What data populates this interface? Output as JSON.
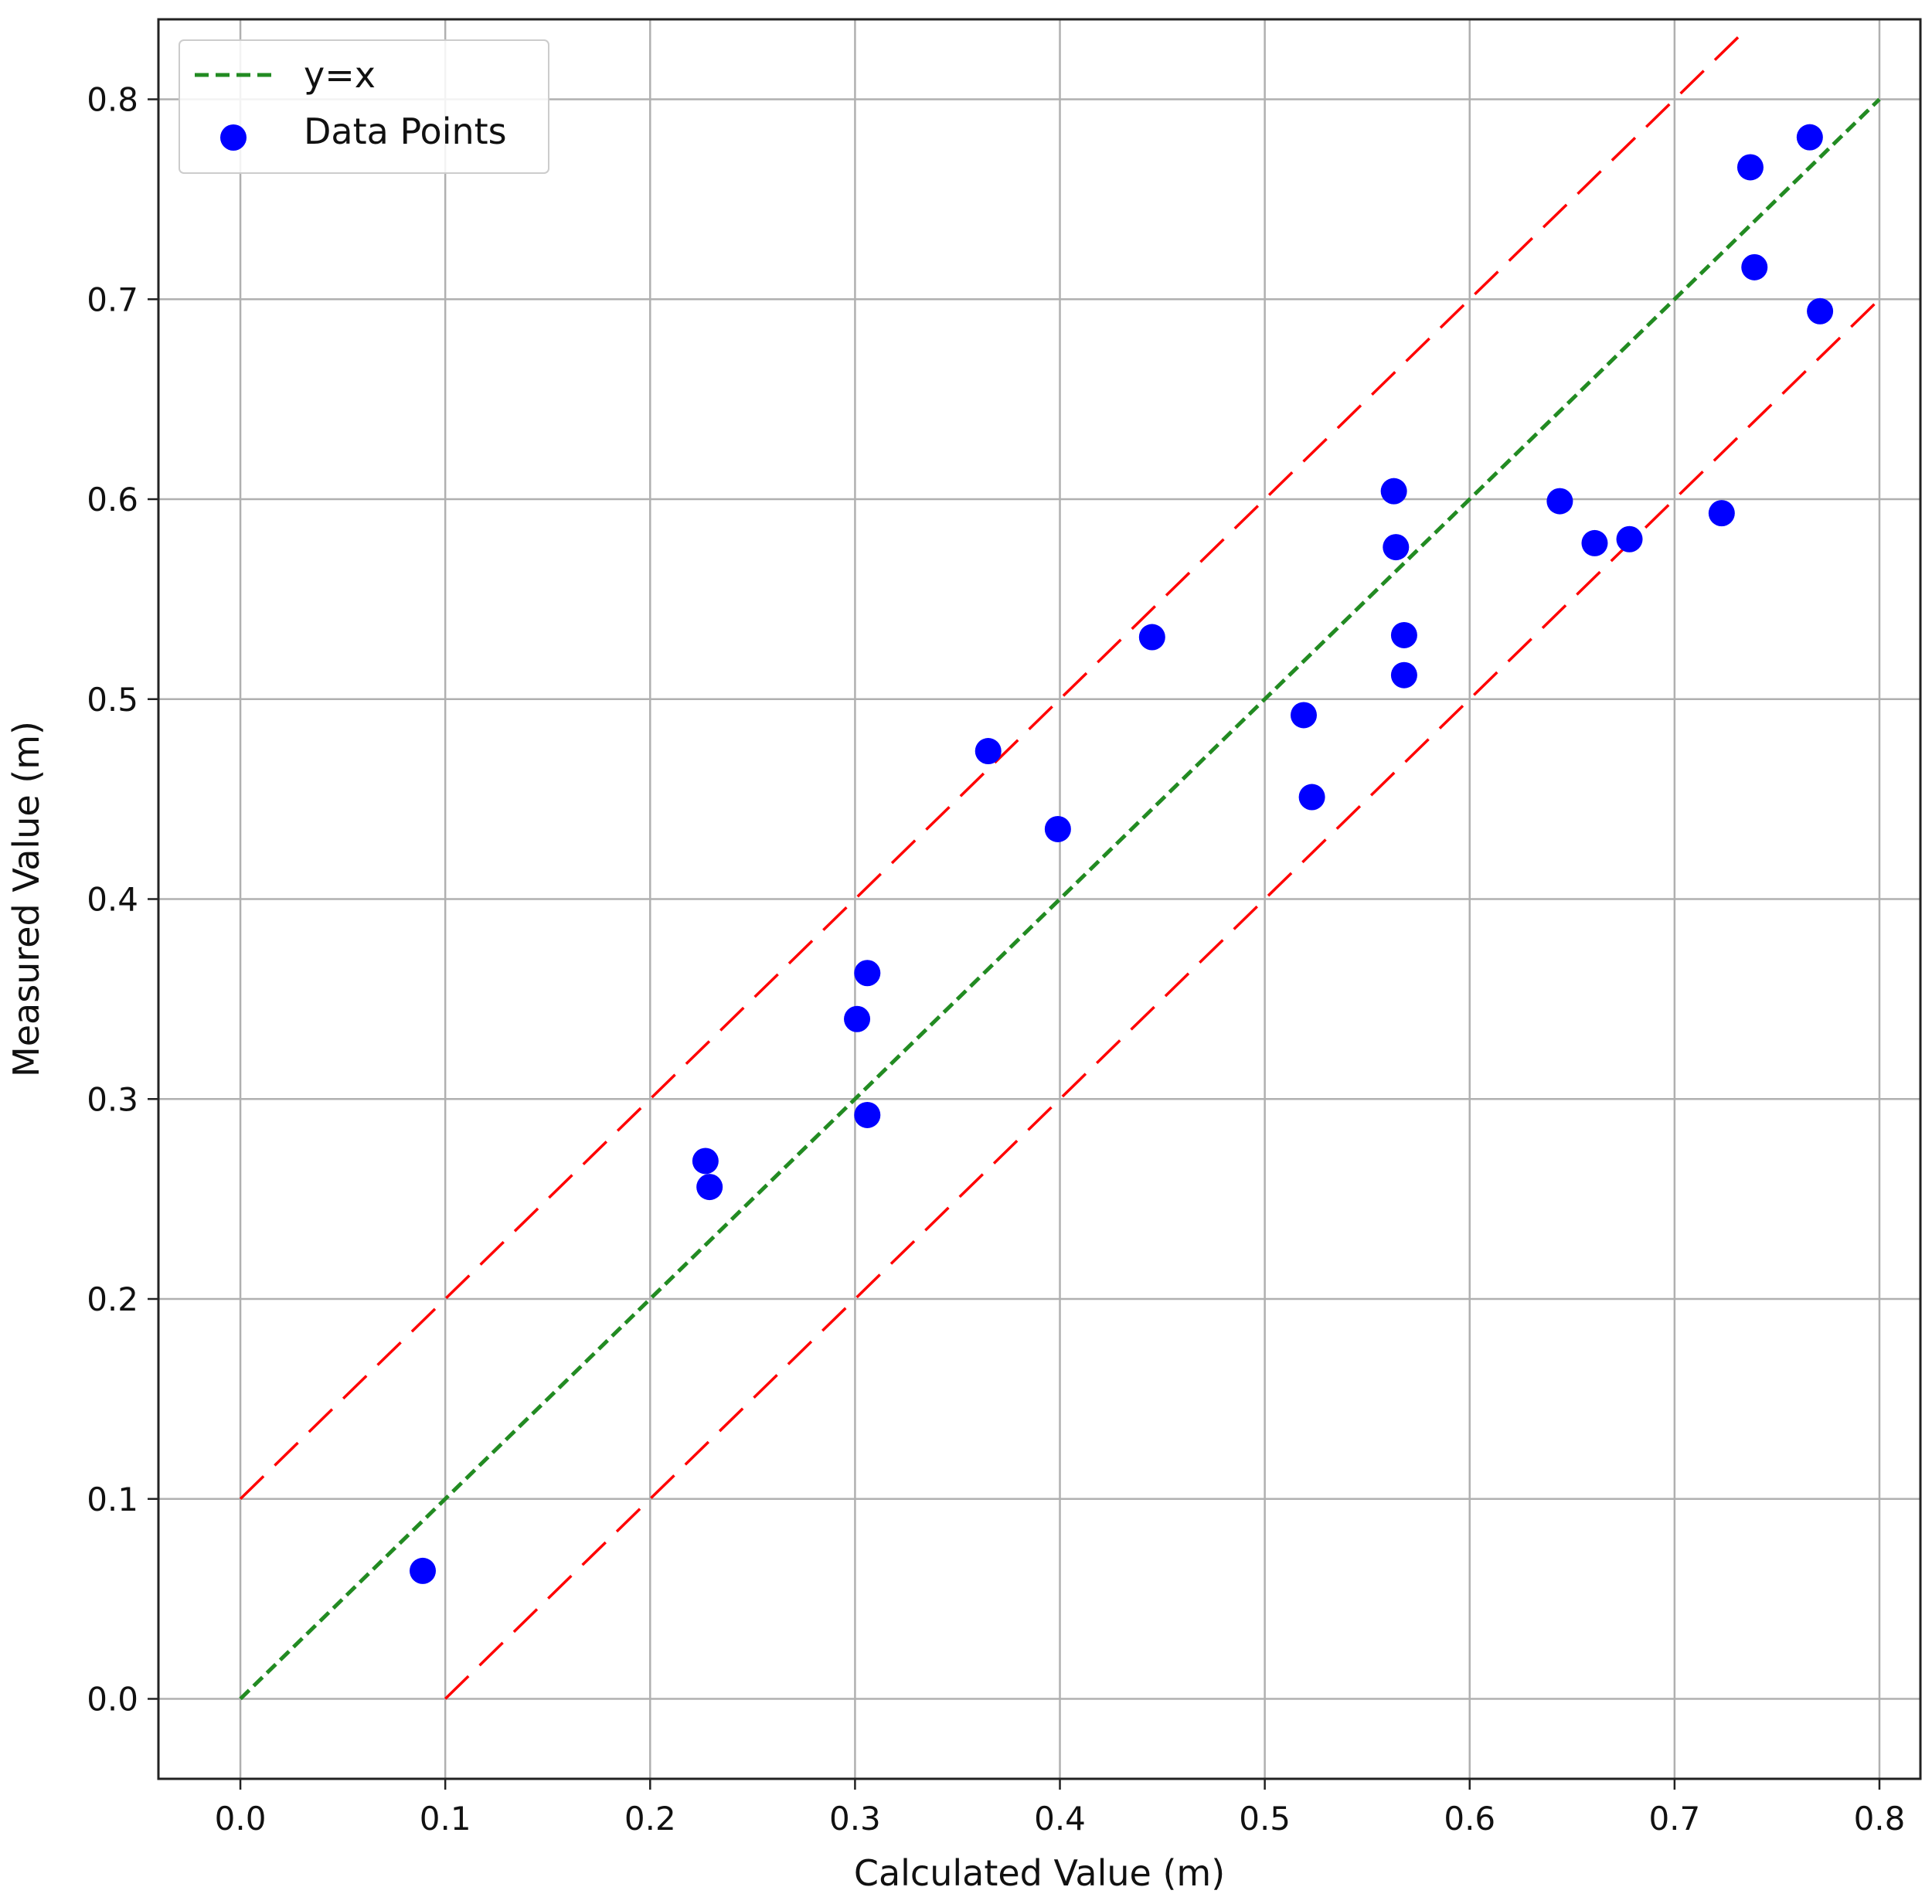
{
  "chart_data": {
    "type": "scatter",
    "xlabel": "Calculated Value (m)",
    "ylabel": "Measured Value (m)",
    "xlim": [
      -0.04,
      0.82
    ],
    "ylim": [
      -0.04,
      0.84
    ],
    "xticks": [
      "0.0",
      "0.1",
      "0.2",
      "0.3",
      "0.4",
      "0.5",
      "0.6",
      "0.7",
      "0.8"
    ],
    "yticks": [
      "0.0",
      "0.1",
      "0.2",
      "0.3",
      "0.4",
      "0.5",
      "0.6",
      "0.7",
      "0.8"
    ],
    "grid": true,
    "legend_position": "top-left",
    "legend": [
      {
        "label": "y=x",
        "style": "dashed-line",
        "color": "#228B22"
      },
      {
        "label": "Data Points",
        "style": "marker",
        "color": "#0000FF"
      }
    ],
    "series": [
      {
        "name": "Data Points",
        "color": "#0000FF",
        "x": [
          0.089,
          0.227,
          0.229,
          0.301,
          0.306,
          0.306,
          0.365,
          0.399,
          0.445,
          0.519,
          0.523,
          0.563,
          0.564,
          0.568,
          0.568,
          0.644,
          0.661,
          0.678,
          0.723,
          0.737,
          0.739,
          0.766,
          0.771
        ],
        "y": [
          0.064,
          0.269,
          0.256,
          0.34,
          0.363,
          0.292,
          0.474,
          0.435,
          0.531,
          0.492,
          0.451,
          0.604,
          0.576,
          0.532,
          0.512,
          0.599,
          0.578,
          0.58,
          0.593,
          0.766,
          0.716,
          0.781,
          0.694
        ]
      }
    ],
    "reference_lines": [
      {
        "name": "y=x",
        "color": "#228B22",
        "x": [
          0.0,
          0.8
        ],
        "y": [
          0.0,
          0.8
        ]
      },
      {
        "color": "#FF0000",
        "x": [
          0.0,
          0.736
        ],
        "y": [
          0.1,
          0.836
        ]
      },
      {
        "color": "#FF0000",
        "x": [
          0.1,
          0.8
        ],
        "y": [
          0.0,
          0.7
        ]
      }
    ]
  }
}
